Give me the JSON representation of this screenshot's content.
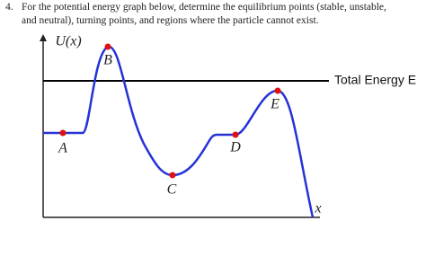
{
  "question": {
    "number": "4.",
    "lines": [
      "For the potential energy graph below, determine the equilibrium points (stable, unstable,",
      "and neutral), turning points, and regions where the particle cannot exist."
    ]
  },
  "graph": {
    "y_label": "U(x)",
    "x_label": "x",
    "energy_label": "Total Energy E",
    "points": [
      {
        "label": "A"
      },
      {
        "label": "B"
      },
      {
        "label": "C"
      },
      {
        "label": "D"
      },
      {
        "label": "E"
      }
    ]
  }
}
